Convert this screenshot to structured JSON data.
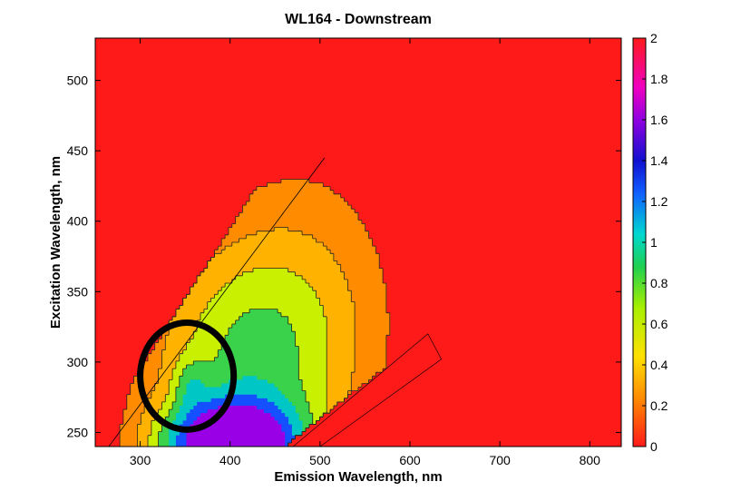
{
  "chart_data": {
    "type": "heatmap",
    "title": "WL164 - Downstream",
    "xlabel": "Emission Wavelength, nm",
    "ylabel": "Excitation Wavelength, nm",
    "xlim": [
      250,
      835
    ],
    "ylim": [
      240,
      530
    ],
    "x_ticks": [
      300,
      400,
      500,
      600,
      700,
      800
    ],
    "y_ticks": [
      250,
      300,
      350,
      400,
      450,
      500
    ],
    "colorbar": {
      "range": [
        0,
        2
      ],
      "ticks": [
        0,
        0.2,
        0.4,
        0.6,
        0.8,
        1,
        1.2,
        1.4,
        1.6,
        1.8,
        2
      ],
      "tick_labels": [
        "0",
        "0.2",
        "0.4",
        "0.6",
        "0.8",
        "1",
        "1.2",
        "1.4",
        "1.6",
        "1.8",
        "2"
      ]
    },
    "contour_levels": [
      {
        "value": 0.3,
        "color": "#ff8c00"
      },
      {
        "value": 0.5,
        "color": "#ffb300"
      },
      {
        "value": 0.7,
        "color": "#c8f000"
      },
      {
        "value": 0.9,
        "color": "#39d24a"
      },
      {
        "value": 1.1,
        "color": "#00c6c6"
      },
      {
        "value": 1.3,
        "color": "#1450ff"
      },
      {
        "value": 1.5,
        "color": "#9a00e6"
      }
    ],
    "background_color": "#ff1a1a",
    "scatter_band": "ex = em (Rayleigh scatter)",
    "highlight_ellipse": {
      "center": [
        352,
        290
      ],
      "radius": [
        52,
        38
      ]
    },
    "grid": false
  }
}
